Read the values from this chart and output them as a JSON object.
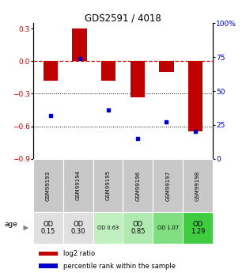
{
  "title": "GDS2591 / 4018",
  "samples": [
    "GSM99193",
    "GSM99194",
    "GSM99195",
    "GSM99196",
    "GSM99197",
    "GSM99198"
  ],
  "log2_ratio": [
    -0.18,
    0.3,
    -0.18,
    -0.33,
    -0.1,
    -0.65
  ],
  "percentile_rank": [
    32,
    74,
    36,
    15,
    27,
    20
  ],
  "bar_color": "#c00000",
  "dot_color": "#0000cc",
  "ylim_left": [
    -0.9,
    0.35
  ],
  "ylim_right": [
    0,
    100
  ],
  "yticks_left": [
    0.3,
    0.0,
    -0.3,
    -0.6,
    -0.9
  ],
  "yticks_right": [
    100,
    75,
    50,
    25,
    0
  ],
  "hline_dashed": 0.0,
  "hlines_dotted": [
    -0.3,
    -0.6
  ],
  "age_labels": [
    "OD\n0.15",
    "OD\n0.30",
    "OD 0.63",
    "OD\n0.85",
    "OD 1.07",
    "OD\n1.29"
  ],
  "age_bg_colors": [
    "#e0e0e0",
    "#e0e0e0",
    "#c0efc0",
    "#b0eab0",
    "#80de80",
    "#40cc40"
  ],
  "age_fontsize_large": [
    true,
    true,
    false,
    true,
    false,
    true
  ],
  "sample_bg_color": "#c8c8c8",
  "legend_log2": "log2 ratio",
  "legend_pct": "percentile rank within the sample",
  "xlabel_age": "age"
}
